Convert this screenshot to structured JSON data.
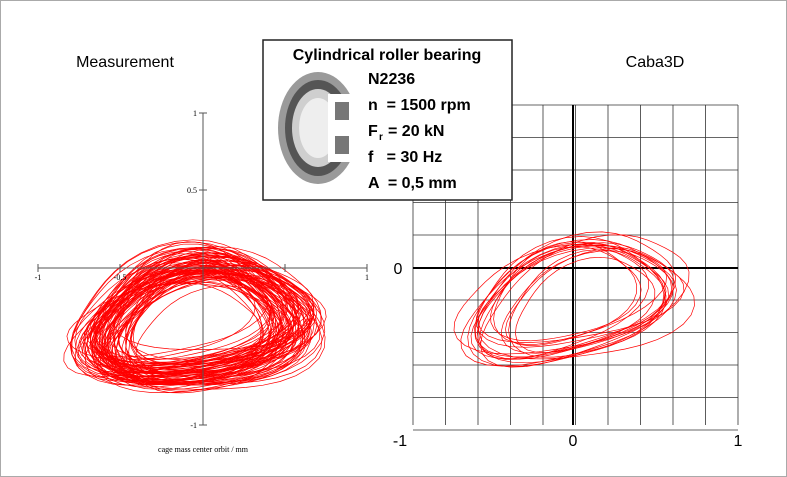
{
  "left_panel": {
    "title": "Measurement",
    "xticks": [
      "-1",
      "-0.5",
      "1"
    ],
    "yticks": [
      "1",
      "0.5",
      "-1"
    ],
    "xlabel": "cage mass center orbit / mm"
  },
  "right_panel": {
    "title": "Caba3D",
    "xticks": [
      "-1",
      "0",
      "1"
    ],
    "yticks": [
      "0"
    ]
  },
  "info_box": {
    "title": "Cylindrical roller bearing",
    "lines": [
      "N2236",
      "n  = 1500 rpm",
      "F",
      "r",
      "= 20 kN",
      "f   = 30 Hz",
      "A  = 0,5 mm"
    ]
  }
}
